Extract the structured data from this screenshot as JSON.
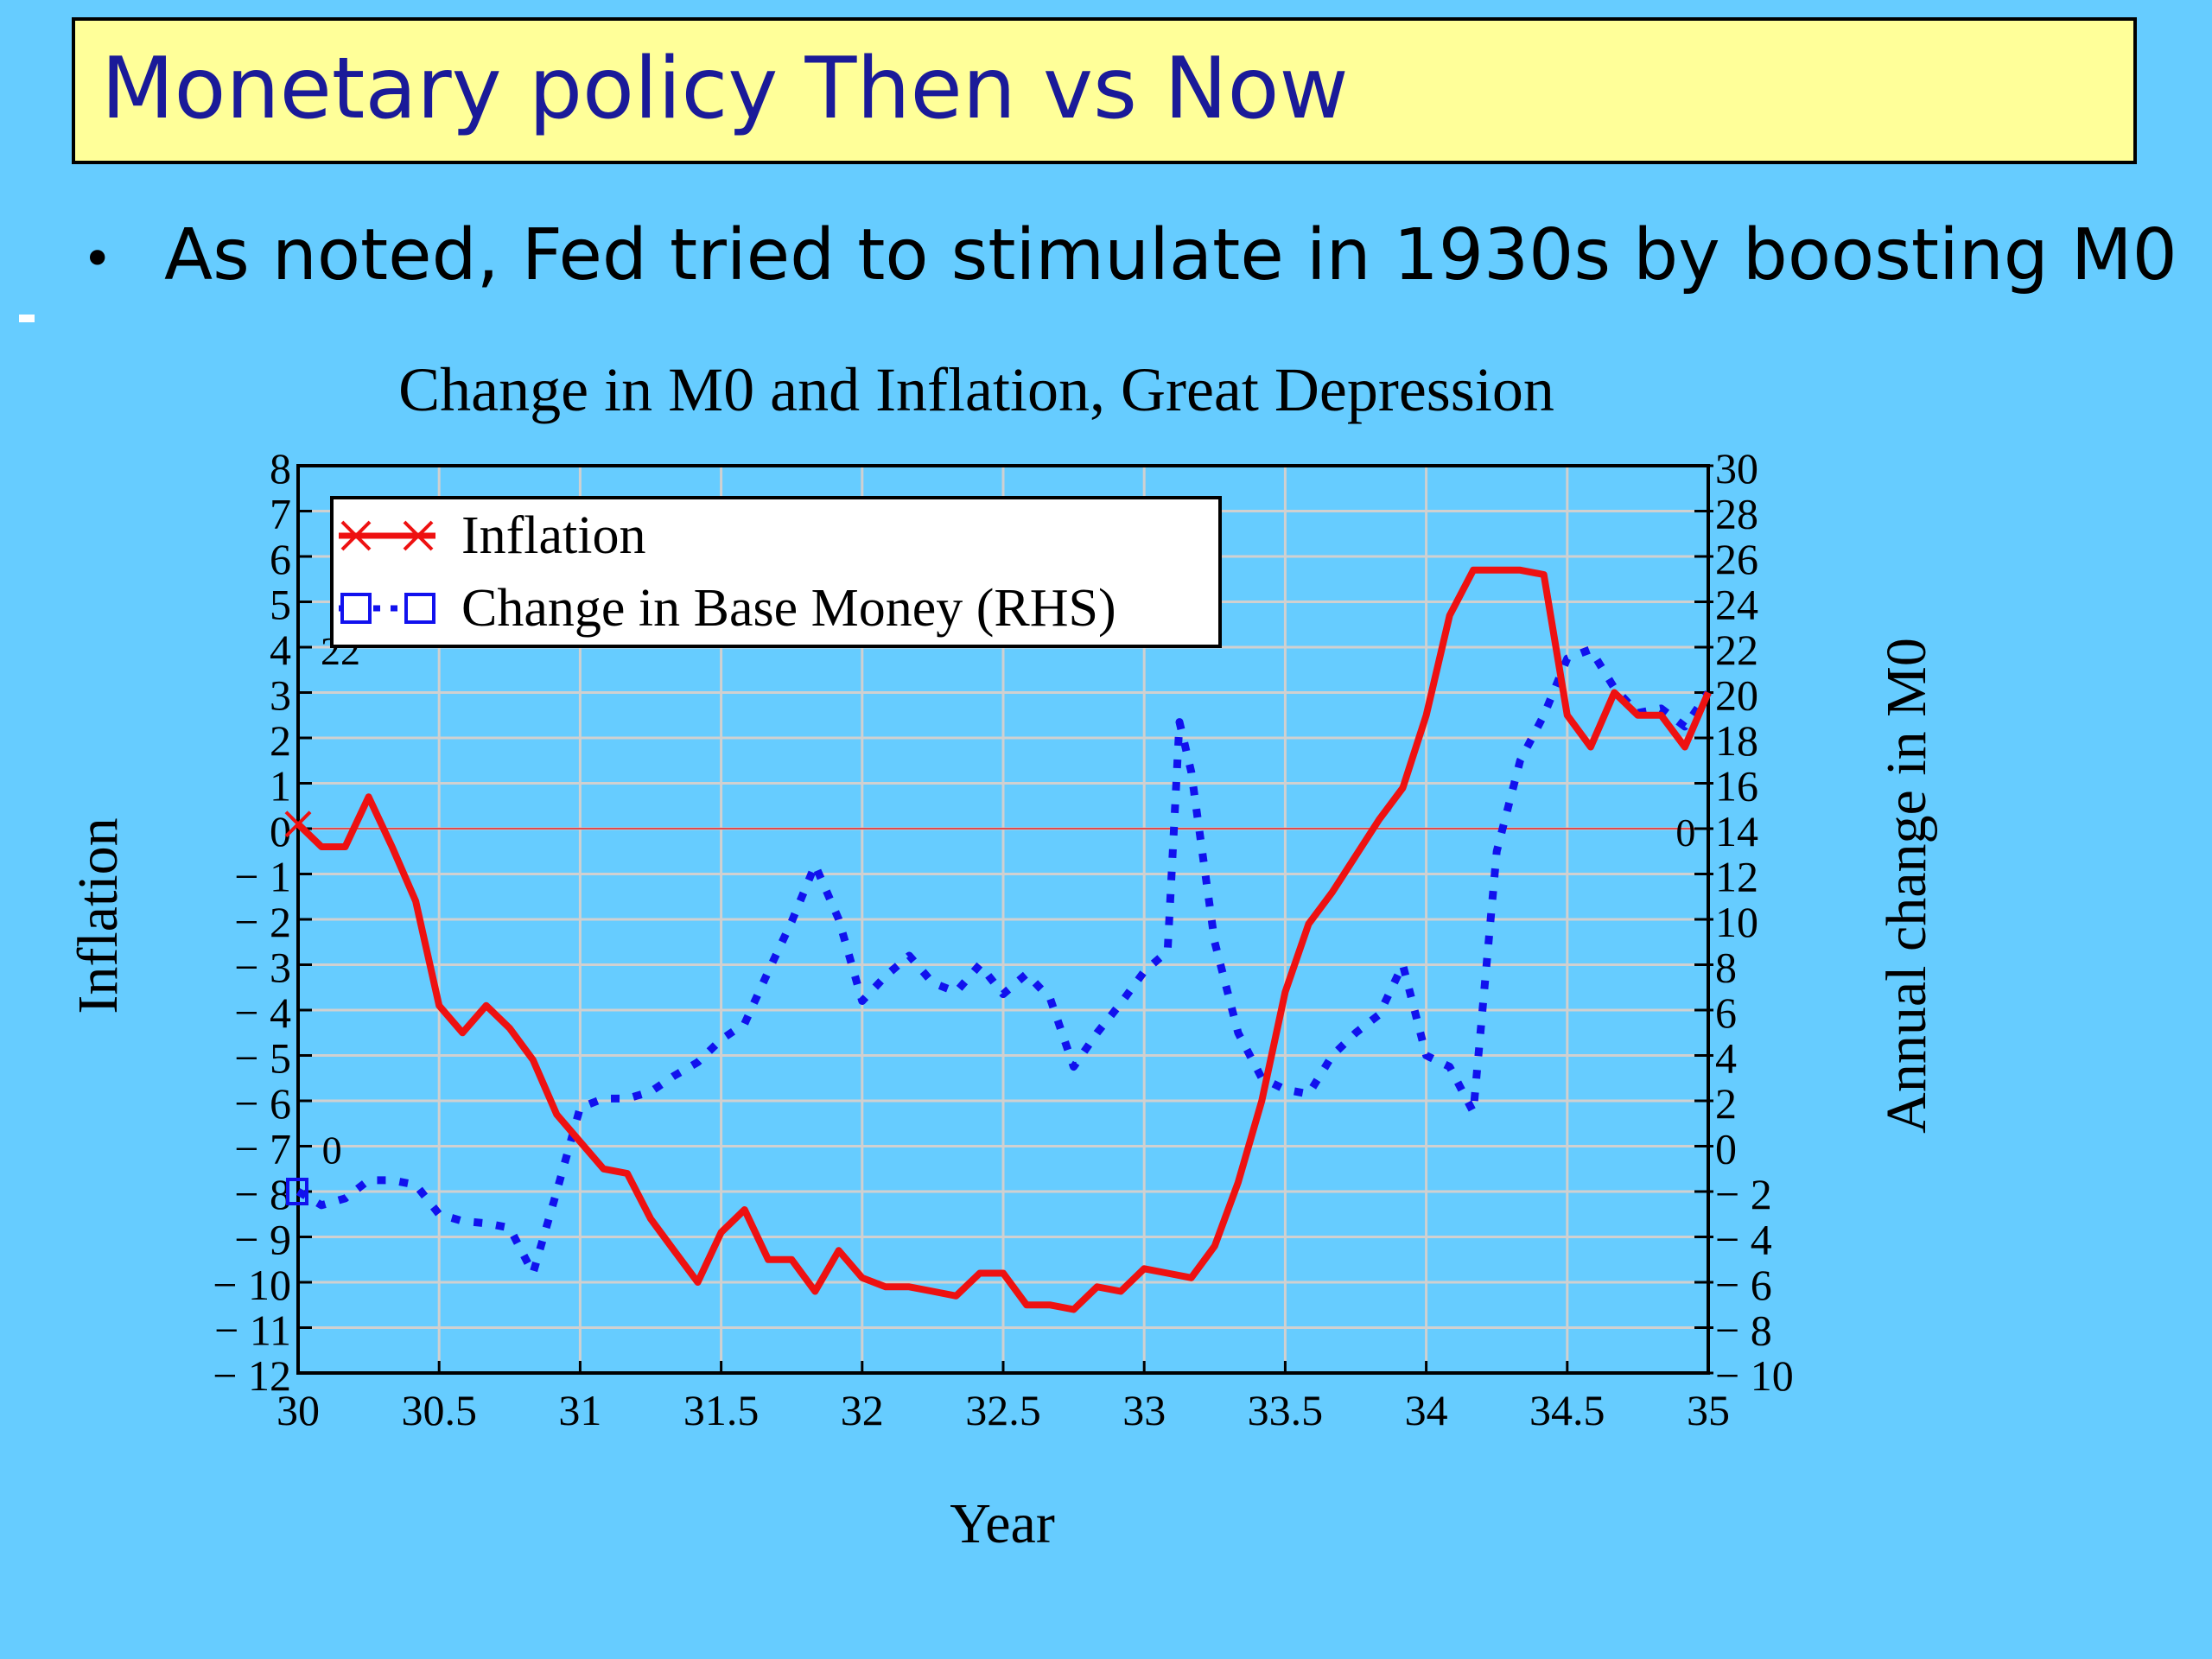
{
  "slide": {
    "title": "Monetary policy Then vs Now",
    "bullet": "As noted, Fed tried to stimulate in 1930s by boosting M0"
  },
  "colors": {
    "background": "#66ccff",
    "title_fill": "#ffff99",
    "title_text": "#1a1a99",
    "inflation": "#ee1111",
    "base_money": "#1111ee",
    "grid": "#d0d0d0",
    "plot_bg": "#66ccff"
  },
  "chart_data": {
    "type": "line",
    "title": "Change in M0 and Inflation, Great Depression",
    "xlabel": "Year",
    "ylabel_left": "Inflation",
    "ylabel_right": "Annual change in M0",
    "xlim": [
      30,
      35
    ],
    "ylim_left": [
      -12,
      8
    ],
    "ylim_right": [
      -10,
      30
    ],
    "x_ticks": [
      "30",
      "30.5",
      "31",
      "31.5",
      "32",
      "32.5",
      "33",
      "33.5",
      "34",
      "34.5",
      "35"
    ],
    "y_left_ticks": [
      "8",
      "7",
      "6",
      "5",
      "4",
      "3",
      "2",
      "1",
      "0",
      "− 1",
      "− 2",
      "− 3",
      "− 4",
      "− 5",
      "− 6",
      "− 7",
      "− 8",
      "− 9",
      "− 10",
      "− 11",
      "− 12"
    ],
    "y_right_ticks": [
      "30",
      "28",
      "26",
      "24",
      "22",
      "20",
      "18",
      "16",
      "14",
      "12",
      "10",
      "8",
      "6",
      "4",
      "2",
      "0",
      "− 2",
      "− 4",
      "− 6",
      "− 8",
      "− 10"
    ],
    "grid": true,
    "legend_position": "top-left",
    "annotations": [
      {
        "text": "22",
        "x": 30.15,
        "y_left": 4
      },
      {
        "text": "0",
        "x": 30.12,
        "y_left": -7
      },
      {
        "text": "0",
        "x": 34.92,
        "y_left": 0
      }
    ],
    "series": [
      {
        "name": "Inflation",
        "axis": "left",
        "style": "solid",
        "marker": "x",
        "x": [
          30,
          30.083,
          30.167,
          30.25,
          30.333,
          30.417,
          30.5,
          30.583,
          30.667,
          30.75,
          30.833,
          30.917,
          31,
          31.083,
          31.167,
          31.25,
          31.333,
          31.417,
          31.5,
          31.583,
          31.667,
          31.75,
          31.833,
          31.917,
          32,
          32.083,
          32.167,
          32.25,
          32.333,
          32.417,
          32.5,
          32.583,
          32.667,
          32.75,
          32.833,
          32.917,
          33,
          33.083,
          33.167,
          33.25,
          33.333,
          33.417,
          33.5,
          33.583,
          33.667,
          33.75,
          33.833,
          33.917,
          34,
          34.083,
          34.167,
          34.25,
          34.333,
          34.417,
          34.5,
          34.583,
          34.667,
          34.75,
          34.833,
          34.917,
          35
        ],
        "values": [
          0.1,
          -0.4,
          -0.4,
          0.7,
          -0.4,
          -1.6,
          -3.9,
          -4.5,
          -3.9,
          -4.4,
          -5.1,
          -6.3,
          -6.9,
          -7.5,
          -7.6,
          -8.6,
          -9.3,
          -10.0,
          -8.9,
          -8.4,
          -9.5,
          -9.5,
          -10.2,
          -9.3,
          -9.9,
          -10.1,
          -10.1,
          -10.2,
          -10.3,
          -9.8,
          -9.8,
          -10.5,
          -10.5,
          -10.6,
          -10.1,
          -10.2,
          -9.7,
          -9.8,
          -9.9,
          -9.2,
          -7.8,
          -6.0,
          -3.6,
          -2.1,
          -1.4,
          -0.6,
          0.2,
          0.9,
          2.5,
          4.7,
          5.7,
          5.7,
          5.7,
          5.6,
          2.5,
          1.8,
          3.0,
          2.5,
          2.5,
          1.8,
          3.0
        ]
      },
      {
        "name": "Change in Base Money (RHS)",
        "axis": "right",
        "style": "dotted",
        "marker": "square",
        "x": [
          30,
          30.083,
          30.167,
          30.25,
          30.333,
          30.417,
          30.5,
          30.583,
          30.667,
          30.75,
          30.833,
          30.917,
          31,
          31.083,
          31.167,
          31.25,
          31.333,
          31.417,
          31.5,
          31.583,
          31.667,
          31.75,
          31.833,
          31.917,
          32,
          32.083,
          32.167,
          32.25,
          32.333,
          32.417,
          32.5,
          32.583,
          32.667,
          32.75,
          32.833,
          32.917,
          33,
          33.083,
          33.125,
          33.167,
          33.25,
          33.333,
          33.417,
          33.5,
          33.583,
          33.667,
          33.75,
          33.833,
          33.917,
          34,
          34.083,
          34.167,
          34.25,
          34.333,
          34.417,
          34.5,
          34.583,
          34.667,
          34.75,
          34.833,
          34.917,
          35
        ],
        "values": [
          -2.0,
          -2.6,
          -2.3,
          -1.5,
          -1.5,
          -1.7,
          -3.0,
          -3.3,
          -3.4,
          -3.6,
          -5.6,
          -2.0,
          1.7,
          2.1,
          2.1,
          2.4,
          3.1,
          3.7,
          4.7,
          5.4,
          7.7,
          9.9,
          12.4,
          10.0,
          6.4,
          7.5,
          8.4,
          7.2,
          6.8,
          8.0,
          6.7,
          7.6,
          6.5,
          3.5,
          5.0,
          6.3,
          7.7,
          8.6,
          18.7,
          16.5,
          9.0,
          5.0,
          3.0,
          2.5,
          2.3,
          4.0,
          5.0,
          5.8,
          8.0,
          4.0,
          3.5,
          1.5,
          13.0,
          17.0,
          19.0,
          21.5,
          21.9,
          20.2,
          19.1,
          19.3,
          18.5,
          20.0
        ]
      }
    ]
  }
}
